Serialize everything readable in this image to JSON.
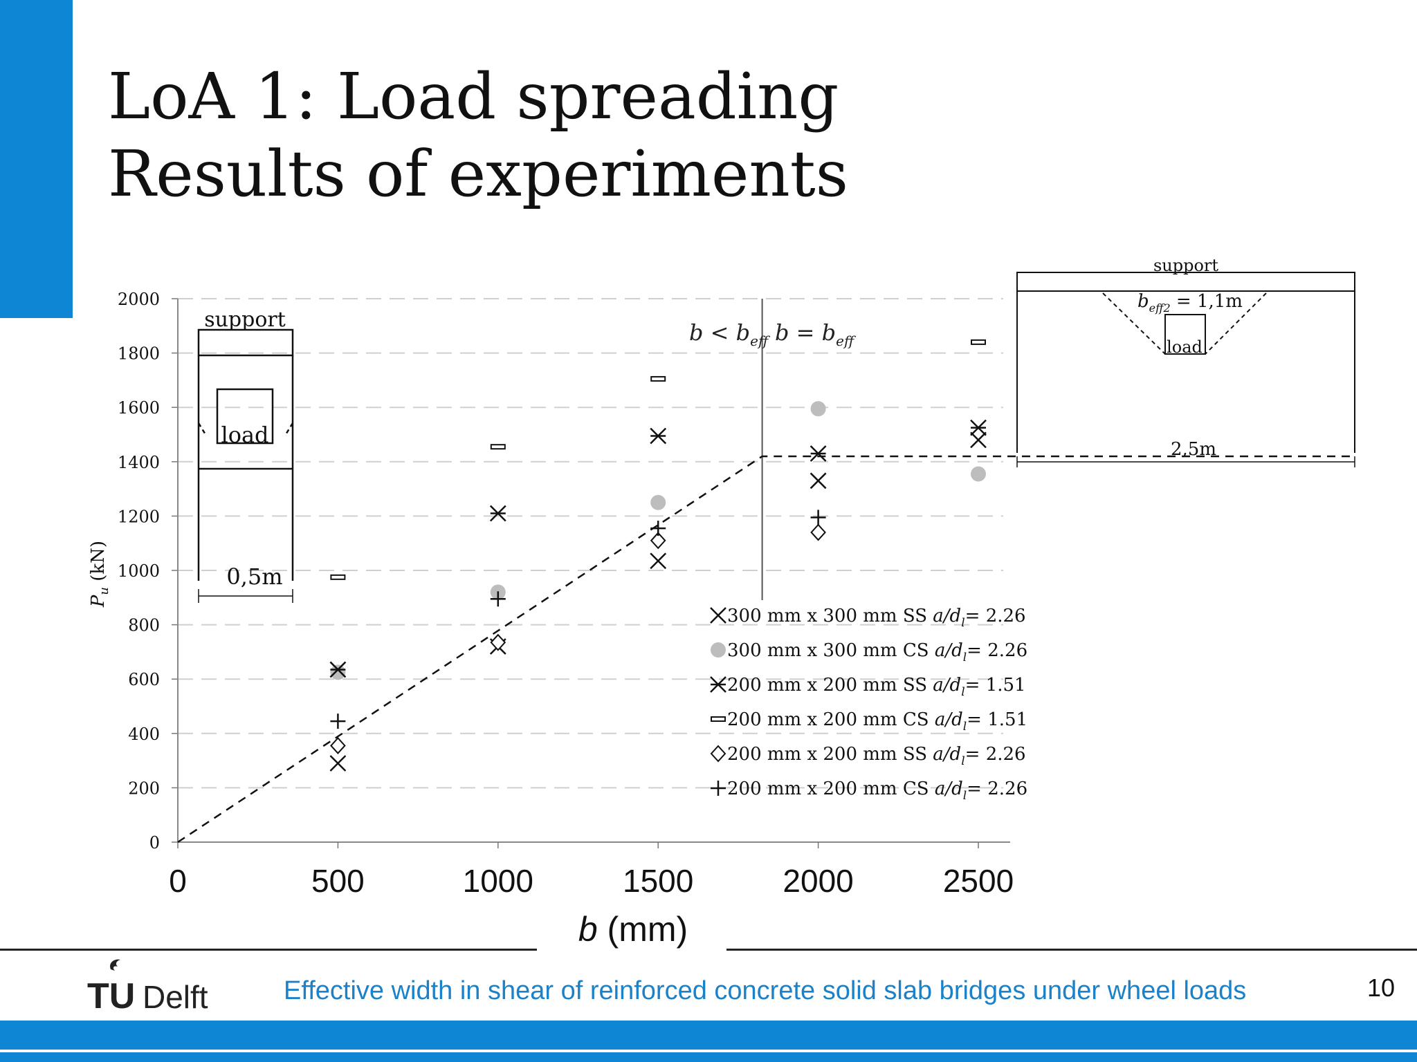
{
  "slide": {
    "title_line1": "LoA 1: Load spreading",
    "title_line2": "Results of experiments",
    "footer_text": "Effective width in shear of reinforced concrete solid slab bridges under wheel loads",
    "page_number": "10",
    "logo_tu": "TU",
    "logo_delft": "Delft",
    "accent_color": "#0e86d4",
    "footer_text_color": "#1b82c9"
  },
  "chart_data": {
    "type": "scatter",
    "xlabel_symbol": "b",
    "xlabel_unit": " (mm)",
    "ylabel_symbol": "P",
    "ylabel_sub": "u",
    "ylabel_unit": " (kN)",
    "xlim": [
      0,
      2500
    ],
    "ylim": [
      0,
      2000
    ],
    "x_ticks": [
      0,
      500,
      1000,
      1500,
      2000,
      2500
    ],
    "y_ticks": [
      0,
      200,
      400,
      600,
      800,
      1000,
      1200,
      1400,
      1600,
      1800,
      2000
    ],
    "grid": "horizontal dashed",
    "legend_position": "bottom-right",
    "series": [
      {
        "name": "300 mm x 300 mm SS a/dl = 2.26",
        "label_main": "300 mm x 300 mm SS ",
        "label_ratio": "a/d",
        "label_sub": "l",
        "label_value": "= 2.26",
        "marker": "x",
        "x": [
          500,
          1000,
          1500,
          2000,
          2500
        ],
        "y": [
          290,
          720,
          1035,
          1330,
          1480
        ]
      },
      {
        "name": "300 mm x 300 mm CS a/dl = 2.26",
        "label_main": "300 mm x 300 mm CS ",
        "label_ratio": "a/d",
        "label_sub": "l",
        "label_value": "= 2.26",
        "marker": "circle",
        "color": "#bdbdbd",
        "x": [
          500,
          1000,
          1500,
          2000,
          2500
        ],
        "y": [
          625,
          920,
          1250,
          1595,
          1355
        ]
      },
      {
        "name": "200 mm x 200 mm SS a/dl = 1.51",
        "label_main": "200 mm x 200 mm SS ",
        "label_ratio": "a/d",
        "label_sub": "l",
        "label_value": "= 1.51",
        "marker": "asterisk",
        "x": [
          500,
          1000,
          1500,
          2000,
          2500
        ],
        "y": [
          635,
          1210,
          1495,
          1430,
          1525
        ]
      },
      {
        "name": "200 mm x 200 mm CS a/dl = 1.51",
        "label_main": "200 mm x 200 mm CS ",
        "label_ratio": "a/d",
        "label_sub": "l",
        "label_value": "= 1.51",
        "marker": "dash",
        "x": [
          500,
          1000,
          1500,
          2500
        ],
        "y": [
          975,
          1455,
          1705,
          1840
        ]
      },
      {
        "name": "200 mm x 200 mm SS a/dl = 2.26",
        "label_main": "200 mm x 200 mm SS ",
        "label_ratio": "a/d",
        "label_sub": "l",
        "label_value": "= 2.26",
        "marker": "diamond",
        "x": [
          500,
          1000,
          1500,
          2000
        ],
        "y": [
          355,
          735,
          1110,
          1140
        ]
      },
      {
        "name": "200 mm x 200 mm CS a/dl = 2.26",
        "label_main": "200 mm x 200 mm CS ",
        "label_ratio": "a/d",
        "label_sub": "l",
        "label_value": "= 2.26",
        "marker": "plus",
        "x": [
          500,
          1000,
          1500,
          2000
        ],
        "y": [
          445,
          895,
          1155,
          1195
        ]
      }
    ],
    "trend_line": {
      "x": [
        0,
        1825,
        2500
      ],
      "y": [
        0,
        1420,
        1420
      ],
      "style": "dashed"
    },
    "divider_x": 1825,
    "region_left": {
      "b": "b",
      "op": " < ",
      "b2": "b",
      "sub": "eff"
    },
    "region_right": {
      "b": "b",
      "op": " = ",
      "b2": "b",
      "sub": "eff"
    },
    "inset_narrow": {
      "support": "support",
      "load": "load",
      "width": "0,5m"
    },
    "inset_wide": {
      "support": "support",
      "load": "load",
      "width": "2,5m",
      "beff_b": "b",
      "beff_sub": "eff2",
      "beff_val": " = 1,1m"
    }
  }
}
